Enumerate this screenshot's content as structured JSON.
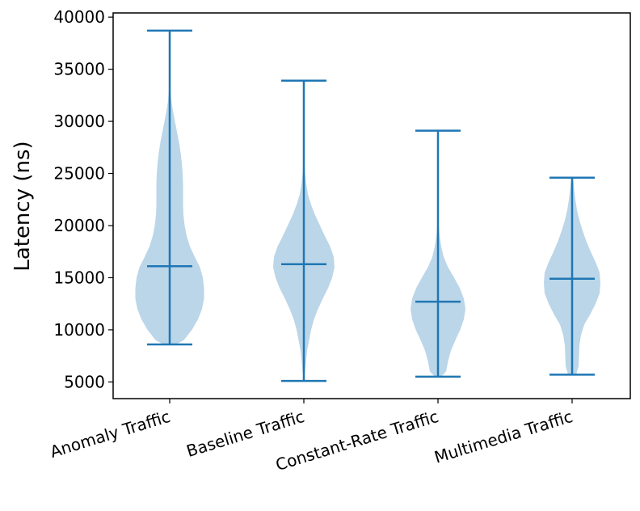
{
  "chart_data": {
    "type": "violin",
    "title": "",
    "xlabel": "",
    "ylabel": "Latency (ns)",
    "ylim": [
      3400,
      40400
    ],
    "yticks": [
      5000,
      10000,
      15000,
      20000,
      25000,
      30000,
      35000,
      40000
    ],
    "ytick_labels": [
      "5000",
      "10000",
      "15000",
      "20000",
      "25000",
      "30000",
      "35000",
      "40000"
    ],
    "categories": [
      "Anomaly Traffic",
      "Baseline Traffic",
      "Constant-Rate Traffic",
      "Multimedia Traffic"
    ],
    "colors": {
      "body": "#1f77b4",
      "line": "#1f77b4"
    },
    "violins": [
      {
        "name": "Anomaly Traffic",
        "min": 8600,
        "median": 16100,
        "max": 38700,
        "density": [
          [
            8600,
            0.15
          ],
          [
            9000,
            0.35
          ],
          [
            10000,
            0.55
          ],
          [
            11000,
            0.7
          ],
          [
            12000,
            0.8
          ],
          [
            13000,
            0.85
          ],
          [
            14000,
            0.85
          ],
          [
            15000,
            0.82
          ],
          [
            16000,
            0.75
          ],
          [
            17000,
            0.62
          ],
          [
            18000,
            0.5
          ],
          [
            19000,
            0.42
          ],
          [
            20000,
            0.37
          ],
          [
            21000,
            0.34
          ],
          [
            22000,
            0.33
          ],
          [
            23000,
            0.33
          ],
          [
            24000,
            0.33
          ],
          [
            25000,
            0.32
          ],
          [
            26000,
            0.3
          ],
          [
            27000,
            0.27
          ],
          [
            28000,
            0.23
          ],
          [
            29000,
            0.18
          ],
          [
            30000,
            0.13
          ],
          [
            31000,
            0.08
          ],
          [
            32000,
            0.04
          ],
          [
            33000,
            0.02
          ],
          [
            34000,
            0.01
          ],
          [
            36000,
            0.006
          ],
          [
            38700,
            0.003
          ]
        ]
      },
      {
        "name": "Baseline Traffic",
        "min": 5100,
        "median": 16300,
        "max": 33900,
        "density": [
          [
            5100,
            0.003
          ],
          [
            6000,
            0.03
          ],
          [
            8000,
            0.08
          ],
          [
            10000,
            0.18
          ],
          [
            11000,
            0.25
          ],
          [
            12000,
            0.35
          ],
          [
            13000,
            0.47
          ],
          [
            14000,
            0.6
          ],
          [
            15000,
            0.7
          ],
          [
            16000,
            0.76
          ],
          [
            17000,
            0.74
          ],
          [
            18000,
            0.65
          ],
          [
            19000,
            0.52
          ],
          [
            20000,
            0.4
          ],
          [
            21000,
            0.28
          ],
          [
            22000,
            0.18
          ],
          [
            23000,
            0.1
          ],
          [
            24000,
            0.06
          ],
          [
            25000,
            0.03
          ],
          [
            26000,
            0.015
          ],
          [
            28000,
            0.006
          ],
          [
            33900,
            0.003
          ]
        ]
      },
      {
        "name": "Constant-Rate Traffic",
        "min": 5500,
        "median": 12700,
        "max": 29100,
        "density": [
          [
            5500,
            0.08
          ],
          [
            6000,
            0.2
          ],
          [
            7000,
            0.25
          ],
          [
            8000,
            0.32
          ],
          [
            9000,
            0.43
          ],
          [
            10000,
            0.55
          ],
          [
            11000,
            0.64
          ],
          [
            12000,
            0.68
          ],
          [
            13000,
            0.64
          ],
          [
            14000,
            0.54
          ],
          [
            15000,
            0.4
          ],
          [
            16000,
            0.25
          ],
          [
            17000,
            0.14
          ],
          [
            18000,
            0.08
          ],
          [
            19000,
            0.04
          ],
          [
            20000,
            0.02
          ],
          [
            22000,
            0.01
          ],
          [
            25000,
            0.006
          ],
          [
            29100,
            0.003
          ]
        ]
      },
      {
        "name": "Multimedia Traffic",
        "min": 5700,
        "median": 14900,
        "max": 24600,
        "density": [
          [
            5700,
            0.1
          ],
          [
            6500,
            0.16
          ],
          [
            7500,
            0.17
          ],
          [
            8500,
            0.18
          ],
          [
            9500,
            0.22
          ],
          [
            10500,
            0.3
          ],
          [
            11500,
            0.45
          ],
          [
            12500,
            0.58
          ],
          [
            13500,
            0.68
          ],
          [
            14500,
            0.7
          ],
          [
            15500,
            0.68
          ],
          [
            16500,
            0.58
          ],
          [
            17500,
            0.46
          ],
          [
            18500,
            0.35
          ],
          [
            19500,
            0.26
          ],
          [
            20500,
            0.18
          ],
          [
            21500,
            0.12
          ],
          [
            22500,
            0.08
          ],
          [
            23500,
            0.05
          ],
          [
            24600,
            0.02
          ]
        ]
      }
    ]
  }
}
